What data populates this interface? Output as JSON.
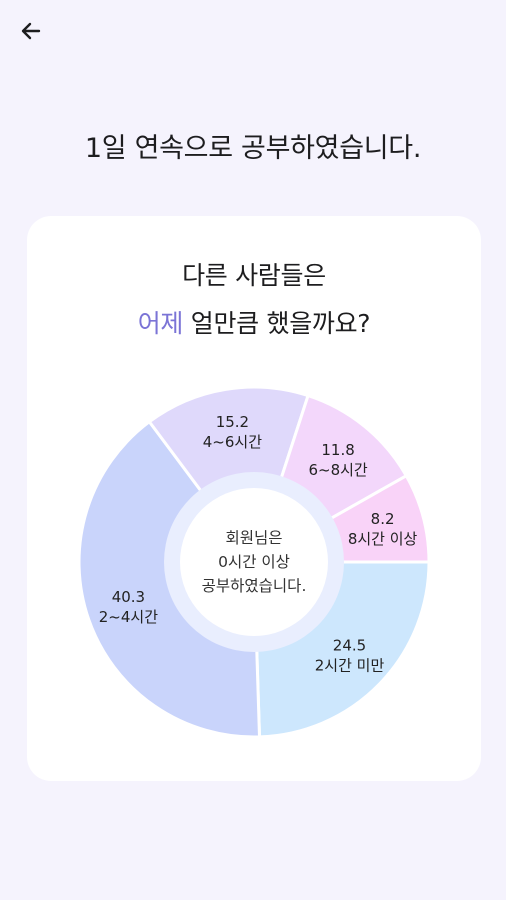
{
  "nav": {
    "back_icon": "arrow-left-icon"
  },
  "headline": "1일 연속으로 공부하였습니다.",
  "card": {
    "title_line1": "다른 사람들은",
    "title_accent": "어제",
    "title_rest": " 얼만큼 했을까요?",
    "center_line1": "회원님은",
    "center_line2": "0시간 이상",
    "center_line3": "공부하였습니다."
  },
  "chart_data": {
    "type": "pie",
    "categories": [
      "2시간 미만",
      "2~4시간",
      "4~6시간",
      "6~8시간",
      "8시간 이상"
    ],
    "values": [
      24.5,
      40.3,
      15.2,
      11.8,
      8.2
    ],
    "value_labels": [
      "24.5",
      "40.3",
      "15.2",
      "11.8",
      "8.2"
    ],
    "colors": [
      "#cde7fd",
      "#c9d4fb",
      "#dfd9fb",
      "#f3d7fb",
      "#f9d3f8"
    ],
    "inner_ring_color": "#e9eefe"
  },
  "colors": {
    "background": "#f5f3fd",
    "card": "#ffffff",
    "accent": "#7b74d6"
  }
}
